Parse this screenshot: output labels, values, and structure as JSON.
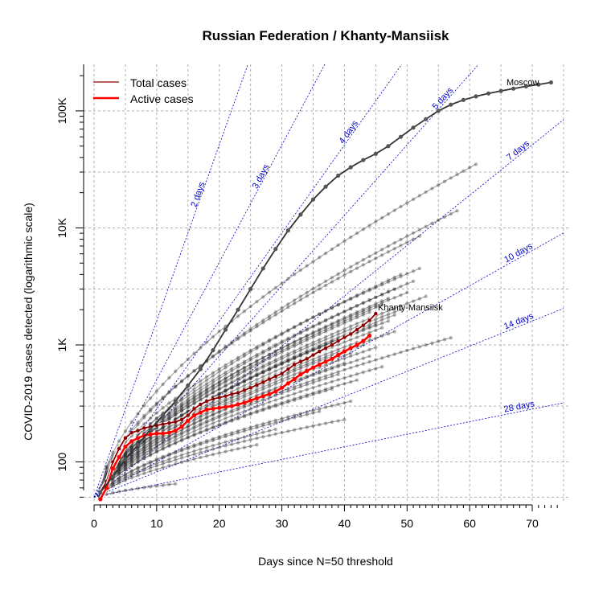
{
  "chart_data": {
    "type": "line",
    "title": "Russian Federation / Khanty-Mansiisk",
    "xlabel": "Days since N=50 threshold",
    "ylabel": "COVID-2019 cases detected (logarithmic scale)",
    "y_scale": "log",
    "xlim": [
      0,
      75
    ],
    "ylim": [
      45,
      250000
    ],
    "x_ticks": [
      0,
      10,
      20,
      30,
      40,
      50,
      60,
      70
    ],
    "x_tick_labels": [
      "0",
      "10",
      "20",
      "30",
      "40",
      "50",
      "60",
      "70"
    ],
    "y_ticks": [
      100,
      1000,
      10000,
      100000
    ],
    "y_tick_labels": [
      "100",
      "1K",
      "10K",
      "100K"
    ],
    "grid": true,
    "legend_position": "top-left",
    "legend": [
      {
        "label": "Total cases",
        "color": "#a52a2a"
      },
      {
        "label": "Active cases",
        "color": "#ff0000"
      }
    ],
    "doubling_lines": [
      {
        "label": "2 days",
        "days": 2
      },
      {
        "label": "3 days",
        "days": 3
      },
      {
        "label": "4 days",
        "days": 4
      },
      {
        "label": "5 days",
        "days": 5
      },
      {
        "label": "7 days",
        "days": 7
      },
      {
        "label": "10 days",
        "days": 10
      },
      {
        "label": "14 days",
        "days": 14
      },
      {
        "label": "28 days",
        "days": 28
      }
    ],
    "highlight_labels": {
      "moscow": "Moscow",
      "region": "Khanty-Mansiisk"
    },
    "series": [
      {
        "name": "Total cases",
        "color": "#8b0000",
        "x": [
          1,
          2,
          3,
          4,
          5,
          6,
          7,
          8,
          9,
          10,
          11,
          12,
          13,
          14,
          15,
          16,
          17,
          18,
          19,
          20,
          21,
          22,
          23,
          24,
          25,
          26,
          27,
          28,
          29,
          30,
          31,
          32,
          33,
          34,
          35,
          36,
          37,
          38,
          39,
          40,
          41,
          42,
          43,
          44,
          45
        ],
        "y": [
          55,
          68,
          100,
          130,
          160,
          178,
          185,
          195,
          200,
          205,
          210,
          215,
          220,
          230,
          250,
          285,
          310,
          330,
          345,
          355,
          365,
          380,
          390,
          410,
          430,
          455,
          480,
          510,
          540,
          570,
          620,
          680,
          720,
          760,
          820,
          880,
          940,
          1000,
          1080,
          1160,
          1240,
          1350,
          1470,
          1620,
          1850
        ]
      },
      {
        "name": "Active cases",
        "color": "#ff0000",
        "x": [
          1,
          2,
          3,
          4,
          5,
          6,
          7,
          8,
          9,
          10,
          11,
          12,
          13,
          14,
          15,
          16,
          17,
          18,
          19,
          20,
          21,
          22,
          23,
          24,
          25,
          26,
          27,
          28,
          29,
          30,
          31,
          32,
          33,
          34,
          35,
          36,
          37,
          38,
          39,
          40,
          41,
          42,
          43,
          44
        ],
        "y": [
          48,
          60,
          88,
          110,
          135,
          150,
          160,
          168,
          172,
          175,
          175,
          178,
          185,
          200,
          225,
          250,
          265,
          280,
          285,
          290,
          295,
          300,
          310,
          320,
          335,
          350,
          365,
          380,
          400,
          430,
          470,
          510,
          560,
          600,
          640,
          680,
          720,
          760,
          820,
          880,
          940,
          1000,
          1080,
          1200
        ]
      },
      {
        "name": "Moscow",
        "color": "#404040",
        "x": [
          1,
          3,
          5,
          7,
          9,
          11,
          13,
          15,
          17,
          19,
          21,
          23,
          25,
          27,
          29,
          31,
          33,
          35,
          37,
          39,
          41,
          43,
          45,
          47,
          49,
          51,
          53,
          55,
          57,
          59,
          61,
          63,
          65,
          67,
          69,
          71,
          73
        ],
        "y": [
          55,
          75,
          105,
          140,
          190,
          250,
          330,
          450,
          620,
          900,
          1350,
          2000,
          3000,
          4500,
          6600,
          9500,
          13000,
          17500,
          22500,
          28000,
          33000,
          38000,
          43000,
          50000,
          60000,
          72000,
          85000,
          100000,
          113000,
          124000,
          133000,
          141000,
          148000,
          155000,
          162000,
          168000,
          175000
        ]
      }
    ],
    "background_series": [
      {
        "x0": 1,
        "y0": 55,
        "x1": 61,
        "y1": 35000
      },
      {
        "x0": 1,
        "y0": 52,
        "x1": 58,
        "y1": 14000
      },
      {
        "x0": 1,
        "y0": 58,
        "x1": 52,
        "y1": 8500
      },
      {
        "x0": 1,
        "y0": 60,
        "x1": 52,
        "y1": 4500
      },
      {
        "x0": 1,
        "y0": 50,
        "x1": 49,
        "y1": 4000
      },
      {
        "x0": 1,
        "y0": 56,
        "x1": 51,
        "y1": 3500
      },
      {
        "x0": 1,
        "y0": 50,
        "x1": 48,
        "y1": 3000
      },
      {
        "x0": 1,
        "y0": 54,
        "x1": 50,
        "y1": 2800
      },
      {
        "x0": 1,
        "y0": 50,
        "x1": 47,
        "y1": 2500
      },
      {
        "x0": 1,
        "y0": 52,
        "x1": 53,
        "y1": 2600
      },
      {
        "x0": 1,
        "y0": 50,
        "x1": 46,
        "y1": 2200
      },
      {
        "x0": 1,
        "y0": 55,
        "x1": 49,
        "y1": 2000
      },
      {
        "x0": 1,
        "y0": 50,
        "x1": 44,
        "y1": 1900
      },
      {
        "x0": 1,
        "y0": 50,
        "x1": 48,
        "y1": 1800
      },
      {
        "x0": 1,
        "y0": 53,
        "x1": 47,
        "y1": 1600
      },
      {
        "x0": 1,
        "y0": 50,
        "x1": 45,
        "y1": 1500
      },
      {
        "x0": 1,
        "y0": 50,
        "x1": 46,
        "y1": 1400
      },
      {
        "x0": 1,
        "y0": 51,
        "x1": 42,
        "y1": 1300
      },
      {
        "x0": 1,
        "y0": 50,
        "x1": 48,
        "y1": 1300
      },
      {
        "x0": 1,
        "y0": 52,
        "x1": 44,
        "y1": 1150
      },
      {
        "x0": 1,
        "y0": 50,
        "x1": 57,
        "y1": 1150
      },
      {
        "x0": 1,
        "y0": 50,
        "x1": 43,
        "y1": 1000
      },
      {
        "x0": 1,
        "y0": 50,
        "x1": 45,
        "y1": 950
      },
      {
        "x0": 1,
        "y0": 50,
        "x1": 41,
        "y1": 850
      },
      {
        "x0": 1,
        "y0": 50,
        "x1": 44,
        "y1": 800
      },
      {
        "x0": 1,
        "y0": 50,
        "x1": 40,
        "y1": 700
      },
      {
        "x0": 1,
        "y0": 50,
        "x1": 46,
        "y1": 650
      },
      {
        "x0": 1,
        "y0": 50,
        "x1": 39,
        "y1": 560
      },
      {
        "x0": 1,
        "y0": 50,
        "x1": 42,
        "y1": 500
      },
      {
        "x0": 1,
        "y0": 50,
        "x1": 38,
        "y1": 420
      },
      {
        "x0": 1,
        "y0": 50,
        "x1": 41,
        "y1": 330
      },
      {
        "x0": 1,
        "y0": 50,
        "x1": 40,
        "y1": 230
      },
      {
        "x0": 1,
        "y0": 50,
        "x1": 36,
        "y1": 270
      },
      {
        "x0": 1,
        "y0": 50,
        "x1": 29,
        "y1": 190
      },
      {
        "x0": 1,
        "y0": 50,
        "x1": 26,
        "y1": 140
      },
      {
        "x0": 1,
        "y0": 50,
        "x1": 13,
        "y1": 65
      }
    ]
  }
}
